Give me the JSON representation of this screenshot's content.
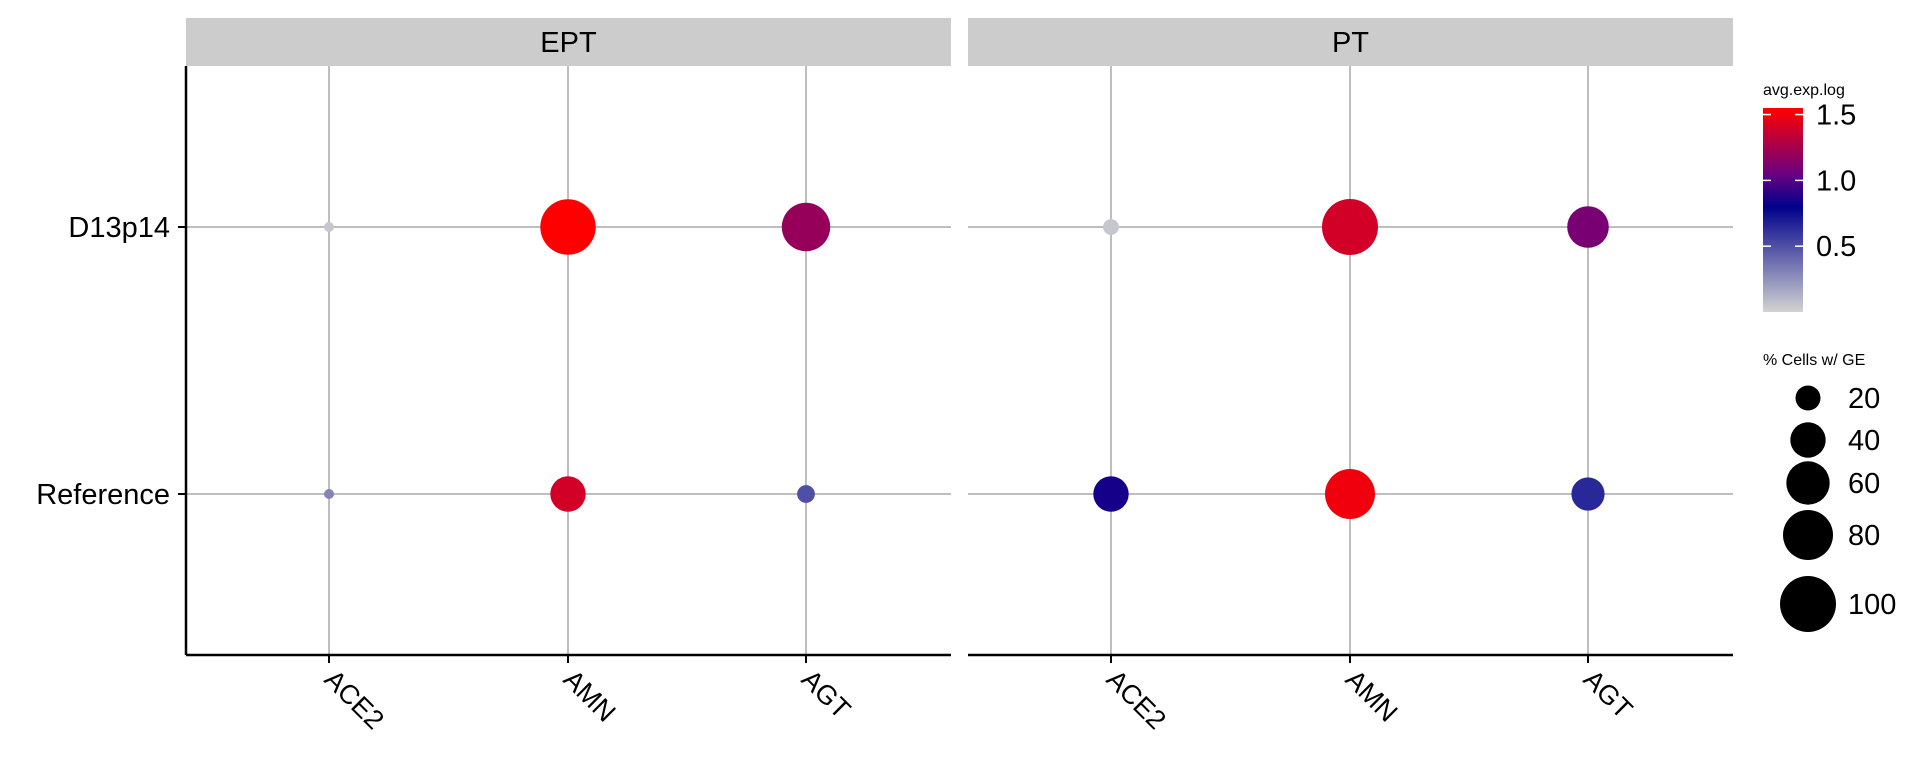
{
  "chart_data": {
    "type": "scatter",
    "subtype": "dot-plot",
    "title": "",
    "xlabel": "",
    "ylabel": "",
    "facets": [
      "EPT",
      "PT"
    ],
    "x_categories": [
      "ACE2",
      "AMN",
      "AGT"
    ],
    "y_categories": [
      "D13p14",
      "Reference"
    ],
    "grid": true,
    "points": [
      {
        "facet": "EPT",
        "x": "ACE2",
        "y": "D13p14",
        "avg_exp_log": 0.05,
        "pct": 3
      },
      {
        "facet": "EPT",
        "x": "AMN",
        "y": "D13p14",
        "avg_exp_log": 1.55,
        "pct": 98
      },
      {
        "facet": "EPT",
        "x": "AGT",
        "y": "D13p14",
        "avg_exp_log": 1.2,
        "pct": 75
      },
      {
        "facet": "EPT",
        "x": "ACE2",
        "y": "Reference",
        "avg_exp_log": 0.3,
        "pct": 3
      },
      {
        "facet": "EPT",
        "x": "AMN",
        "y": "Reference",
        "avg_exp_log": 1.4,
        "pct": 40
      },
      {
        "facet": "EPT",
        "x": "AGT",
        "y": "Reference",
        "avg_exp_log": 0.5,
        "pct": 10
      },
      {
        "facet": "PT",
        "x": "ACE2",
        "y": "D13p14",
        "avg_exp_log": 0.05,
        "pct": 8
      },
      {
        "facet": "PT",
        "x": "AMN",
        "y": "D13p14",
        "avg_exp_log": 1.4,
        "pct": 100
      },
      {
        "facet": "PT",
        "x": "AGT",
        "y": "D13p14",
        "avg_exp_log": 1.1,
        "pct": 55
      },
      {
        "facet": "PT",
        "x": "ACE2",
        "y": "Reference",
        "avg_exp_log": 0.85,
        "pct": 40
      },
      {
        "facet": "PT",
        "x": "AMN",
        "y": "Reference",
        "avg_exp_log": 1.5,
        "pct": 80
      },
      {
        "facet": "PT",
        "x": "AGT",
        "y": "Reference",
        "avg_exp_log": 0.65,
        "pct": 35
      }
    ],
    "color_legend": {
      "title": "avg.exp.log",
      "range": [
        0.0,
        1.55
      ],
      "ticks": [
        {
          "value": 0.5,
          "label": "0.5"
        },
        {
          "value": 1.0,
          "label": "1.0"
        },
        {
          "value": 1.5,
          "label": "1.5"
        }
      ],
      "gradient": [
        {
          "value": 0.0,
          "color": "#d3d3d3"
        },
        {
          "value": 0.8,
          "color": "#00008b"
        },
        {
          "value": 1.05,
          "color": "#6a0080"
        },
        {
          "value": 1.55,
          "color": "#ff0000"
        }
      ]
    },
    "size_legend": {
      "title": "% Cells w/ GE",
      "values": [
        20,
        40,
        60,
        80,
        100
      ],
      "labels": [
        "20",
        "40",
        "60",
        "80",
        "100"
      ]
    },
    "legend_position": "right"
  }
}
